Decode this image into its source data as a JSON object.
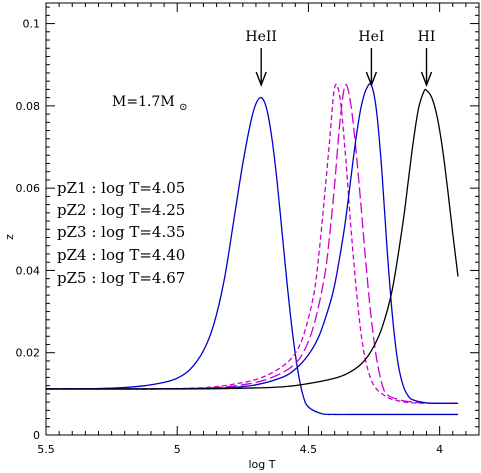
{
  "chart_data": {
    "type": "line",
    "xlabel": "log T",
    "ylabel": "z",
    "xlim": [
      5.5,
      3.85
    ],
    "ylim": [
      0,
      0.105
    ],
    "x_reversed": true,
    "x_ticks": [
      5.5,
      5,
      4.5,
      4
    ],
    "x_tick_labels": [
      "5.5",
      "5",
      "4.5",
      "4"
    ],
    "y_ticks": [
      0,
      0.02,
      0.04,
      0.06,
      0.08,
      0.1
    ],
    "y_tick_labels": [
      "0",
      "0.02",
      "0.04",
      "0.06",
      "0.08",
      "0.1"
    ],
    "grid": false,
    "mass_label": {
      "prefix": "M=1.7M",
      "subscript": "⊙"
    },
    "legend_lines": [
      "pZ1 : log T=4.05",
      "pZ2 : log T=4.25",
      "pZ3 : log T=4.35",
      "pZ4 : log T=4.40",
      "pZ5 : log T=4.67"
    ],
    "arrows": [
      {
        "label": "HeII",
        "x": 4.68
      },
      {
        "label": "HeI",
        "x": 4.26
      },
      {
        "label": "HI",
        "x": 4.05
      }
    ],
    "series": [
      {
        "color": "#0000cc",
        "dash": "solid",
        "x": [
          5.5,
          5.3,
          5.15,
          5.05,
          5.0,
          4.95,
          4.9,
          4.86,
          4.82,
          4.78,
          4.75,
          4.72,
          4.7,
          4.68,
          4.66,
          4.64,
          4.62,
          4.6,
          4.58,
          4.56,
          4.54,
          4.52,
          4.5,
          4.45,
          4.4,
          4.3,
          4.2,
          4.1,
          4.0,
          3.93
        ],
        "y": [
          0.0112,
          0.0113,
          0.0118,
          0.0128,
          0.0138,
          0.016,
          0.0205,
          0.027,
          0.038,
          0.054,
          0.066,
          0.076,
          0.0805,
          0.082,
          0.0795,
          0.0725,
          0.062,
          0.049,
          0.036,
          0.0245,
          0.0155,
          0.0095,
          0.0068,
          0.0052,
          0.005,
          0.005,
          0.005,
          0.005,
          0.005,
          0.005
        ]
      },
      {
        "color": "#cc00cc",
        "dash": "short",
        "x": [
          5.5,
          5.1,
          4.9,
          4.8,
          4.7,
          4.62,
          4.56,
          4.52,
          4.48,
          4.46,
          4.44,
          4.42,
          4.4,
          4.38,
          4.36,
          4.34,
          4.32,
          4.3,
          4.28,
          4.25,
          4.2,
          4.15,
          4.1,
          4.05,
          4.0,
          3.93
        ],
        "y": [
          0.0112,
          0.0112,
          0.0115,
          0.0122,
          0.0135,
          0.0158,
          0.019,
          0.024,
          0.034,
          0.044,
          0.057,
          0.071,
          0.0845,
          0.082,
          0.069,
          0.052,
          0.037,
          0.025,
          0.0175,
          0.012,
          0.0092,
          0.0082,
          0.0078,
          0.0077,
          0.0077,
          0.0077
        ]
      },
      {
        "color": "#cc00cc",
        "dash": "long",
        "x": [
          5.5,
          5.1,
          4.9,
          4.8,
          4.7,
          4.62,
          4.56,
          4.52,
          4.48,
          4.44,
          4.42,
          4.4,
          4.38,
          4.36,
          4.34,
          4.32,
          4.3,
          4.28,
          4.26,
          4.24,
          4.22,
          4.2,
          4.15,
          4.1,
          4.05,
          4.0,
          3.93
        ],
        "y": [
          0.0112,
          0.0112,
          0.0114,
          0.0118,
          0.0128,
          0.0145,
          0.0168,
          0.02,
          0.0265,
          0.038,
          0.048,
          0.061,
          0.076,
          0.085,
          0.081,
          0.07,
          0.056,
          0.041,
          0.028,
          0.0185,
          0.0125,
          0.0098,
          0.0085,
          0.008,
          0.0078,
          0.0077,
          0.0077
        ]
      },
      {
        "color": "#0000cc",
        "dash": "solid",
        "x": [
          5.5,
          5.1,
          4.9,
          4.8,
          4.7,
          4.6,
          4.55,
          4.5,
          4.46,
          4.42,
          4.4,
          4.38,
          4.36,
          4.34,
          4.32,
          4.3,
          4.28,
          4.26,
          4.24,
          4.22,
          4.2,
          4.18,
          4.16,
          4.14,
          4.12,
          4.1,
          4.05,
          4.0,
          3.93
        ],
        "y": [
          0.0112,
          0.0112,
          0.0113,
          0.0115,
          0.0122,
          0.014,
          0.016,
          0.0195,
          0.024,
          0.0315,
          0.0365,
          0.0435,
          0.0515,
          0.0615,
          0.0715,
          0.0795,
          0.084,
          0.085,
          0.0785,
          0.064,
          0.045,
          0.029,
          0.018,
          0.0122,
          0.0095,
          0.0085,
          0.0078,
          0.0077,
          0.0077
        ]
      },
      {
        "color": "#000000",
        "dash": "solid",
        "x": [
          5.5,
          5.0,
          4.8,
          4.6,
          4.5,
          4.4,
          4.35,
          4.3,
          4.26,
          4.22,
          4.18,
          4.14,
          4.12,
          4.1,
          4.08,
          4.06,
          4.05,
          4.03,
          4.01,
          3.99,
          3.97,
          3.95,
          3.93
        ],
        "y": [
          0.0112,
          0.0112,
          0.0113,
          0.0117,
          0.0125,
          0.0138,
          0.015,
          0.0172,
          0.0205,
          0.026,
          0.0355,
          0.0515,
          0.0615,
          0.0715,
          0.0795,
          0.0835,
          0.0838,
          0.082,
          0.0775,
          0.07,
          0.06,
          0.049,
          0.0385
        ]
      }
    ]
  }
}
